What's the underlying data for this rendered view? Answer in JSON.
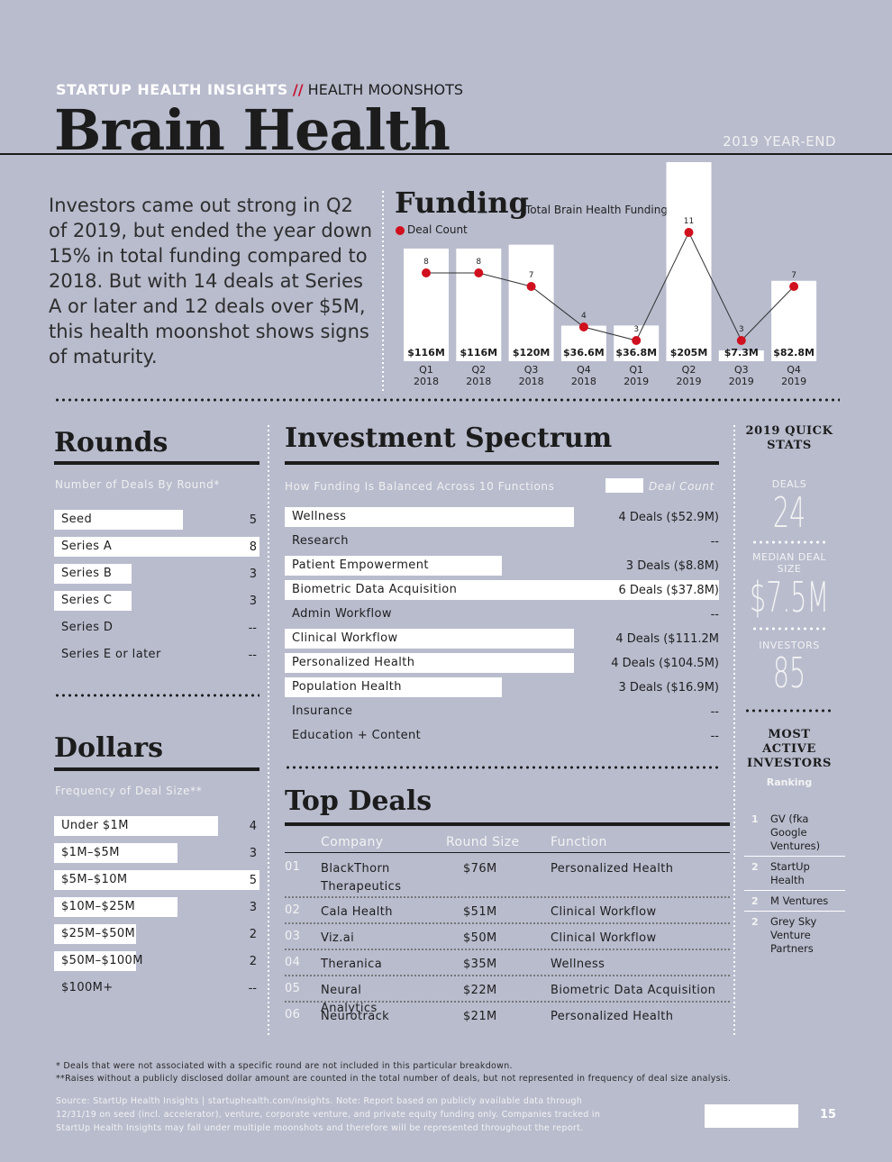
{
  "header": {
    "kicker_brand": "STARTUP HEALTH INSIGHTS",
    "kicker_sep": "//",
    "kicker_topic": "HEALTH MOONSHOTS",
    "title": "Brain Health",
    "edition": "2019 YEAR-END"
  },
  "intro": "Investors came out strong in Q2 of 2019, but ended the year down 15% in total funding compared to 2018. But with 14 deals at Series A or later and 12 deals over $5M, this health moonshot shows signs of maturity.",
  "funding": {
    "title": "Funding",
    "subtitle": "Total Brain Health Funding",
    "legend_dealcount": "Deal Count"
  },
  "chart_data": {
    "type": "bar",
    "categories": [
      [
        "Q1",
        "2018"
      ],
      [
        "Q2",
        "2018"
      ],
      [
        "Q3",
        "2018"
      ],
      [
        "Q4",
        "2018"
      ],
      [
        "Q1",
        "2019"
      ],
      [
        "Q2",
        "2019"
      ],
      [
        "Q3",
        "2019"
      ],
      [
        "Q4",
        "2019"
      ]
    ],
    "series": [
      {
        "name": "Total Brain Health Funding",
        "values": [
          116,
          116,
          120,
          36.6,
          36.8,
          205,
          7.3,
          82.8
        ],
        "labels": [
          "$116M",
          "$116M",
          "$120M",
          "$36.6M",
          "$36.8M",
          "$205M",
          "$7.3M",
          "$82.8M"
        ]
      },
      {
        "name": "Deal Count",
        "type": "line",
        "values": [
          8,
          8,
          7,
          4,
          3,
          11,
          3,
          7
        ]
      }
    ],
    "colors": {
      "bar": "#ffffff",
      "line": "#d0101e"
    }
  },
  "rounds": {
    "title": "Rounds",
    "subtitle": "Number of Deals By Round*",
    "rows": [
      {
        "label": "Seed",
        "value": "5",
        "n": 5
      },
      {
        "label": "Series A",
        "value": "8",
        "n": 8
      },
      {
        "label": "Series B",
        "value": "3",
        "n": 3
      },
      {
        "label": "Series C",
        "value": "3",
        "n": 3
      },
      {
        "label": "Series D",
        "value": "--",
        "n": 0
      },
      {
        "label": "Series E or later",
        "value": "--",
        "n": 0
      }
    ]
  },
  "dollars": {
    "title": "Dollars",
    "subtitle": "Frequency of Deal Size**",
    "rows": [
      {
        "label": "Under $1M",
        "value": "4",
        "n": 4
      },
      {
        "label": "$1M–$5M",
        "value": "3",
        "n": 3
      },
      {
        "label": "$5M–$10M",
        "value": "5",
        "n": 5
      },
      {
        "label": "$10M–$25M",
        "value": "3",
        "n": 3
      },
      {
        "label": "$25M–$50M",
        "value": "2",
        "n": 2
      },
      {
        "label": "$50M–$100M",
        "value": "2",
        "n": 2
      },
      {
        "label": "$100M+",
        "value": "--",
        "n": 0
      }
    ]
  },
  "spectrum": {
    "title": "Investment Spectrum",
    "subtitle": "How Funding Is Balanced Across 10 Functions",
    "legend": "Deal Count",
    "rows": [
      {
        "label": "Wellness",
        "value": "4 Deals ($52.9M)",
        "n": 4
      },
      {
        "label": "Research",
        "value": "--",
        "n": 0
      },
      {
        "label": "Patient Empowerment",
        "value": "3 Deals ($8.8M)",
        "n": 3
      },
      {
        "label": "Biometric Data Acquisition",
        "value": "6 Deals ($37.8M)",
        "n": 6
      },
      {
        "label": "Admin Workflow",
        "value": "--",
        "n": 0
      },
      {
        "label": "Clinical Workflow",
        "value": "4 Deals ($111.2M",
        "n": 4
      },
      {
        "label": "Personalized Health",
        "value": "4 Deals ($104.5M)",
        "n": 4
      },
      {
        "label": "Population Health",
        "value": "3 Deals ($16.9M)",
        "n": 3
      },
      {
        "label": "Insurance",
        "value": "--",
        "n": 0
      },
      {
        "label": "Education + Content",
        "value": "--",
        "n": 0
      }
    ]
  },
  "top_deals": {
    "title": "Top Deals",
    "headers": [
      "Company",
      "Round Size",
      "Function"
    ],
    "rows": [
      {
        "rank": "01",
        "company": "BlackThorn Therapeutics",
        "size": "$76M",
        "function": "Personalized Health"
      },
      {
        "rank": "02",
        "company": "Cala Health",
        "size": "$51M",
        "function": "Clinical Workflow"
      },
      {
        "rank": "03",
        "company": "Viz.ai",
        "size": "$50M",
        "function": "Clinical Workflow"
      },
      {
        "rank": "04",
        "company": "Theranica",
        "size": "$35M",
        "function": "Wellness"
      },
      {
        "rank": "05",
        "company": "Neural Analytics",
        "size": "$22M",
        "function": "Biometric Data Acquisition"
      },
      {
        "rank": "06",
        "company": "Neurotrack",
        "size": "$21M",
        "function": "Personalized Health"
      }
    ]
  },
  "quick_stats": {
    "title": "2019 QUICK STATS",
    "deals_label": "DEALS",
    "deals_value": "24",
    "median_label": "MEDIAN DEAL SIZE",
    "median_value": "$7.5M",
    "investors_label": "INVESTORS",
    "investors_value": "85"
  },
  "most_active": {
    "title": "MOST ACTIVE INVESTORS",
    "subtitle": "Ranking",
    "rows": [
      {
        "rank": "1",
        "name": "GV (fka Google Ventures)"
      },
      {
        "rank": "2",
        "name": "StartUp Health"
      },
      {
        "rank": "2",
        "name": "M Ventures"
      },
      {
        "rank": "2",
        "name": "Grey Sky Venture Partners"
      }
    ]
  },
  "footnotes": {
    "note1": "* Deals that were not associated with a specific round are not included in this particular breakdown.",
    "note2": "**Raises without a publicly disclosed dollar amount are counted in the total number of deals, but not represented in frequency of deal size analysis.",
    "source": "Source: StartUp Health Insights | startuphealth.com/insights. Note: Report based on publicly available data through 12/31/19 on seed (incl. accelerator), venture, corporate venture, and private equity funding only. Companies tracked in StartUp Health Insights may fall under multiple moonshots and therefore will be represented throughout the report."
  },
  "page_number": "15"
}
